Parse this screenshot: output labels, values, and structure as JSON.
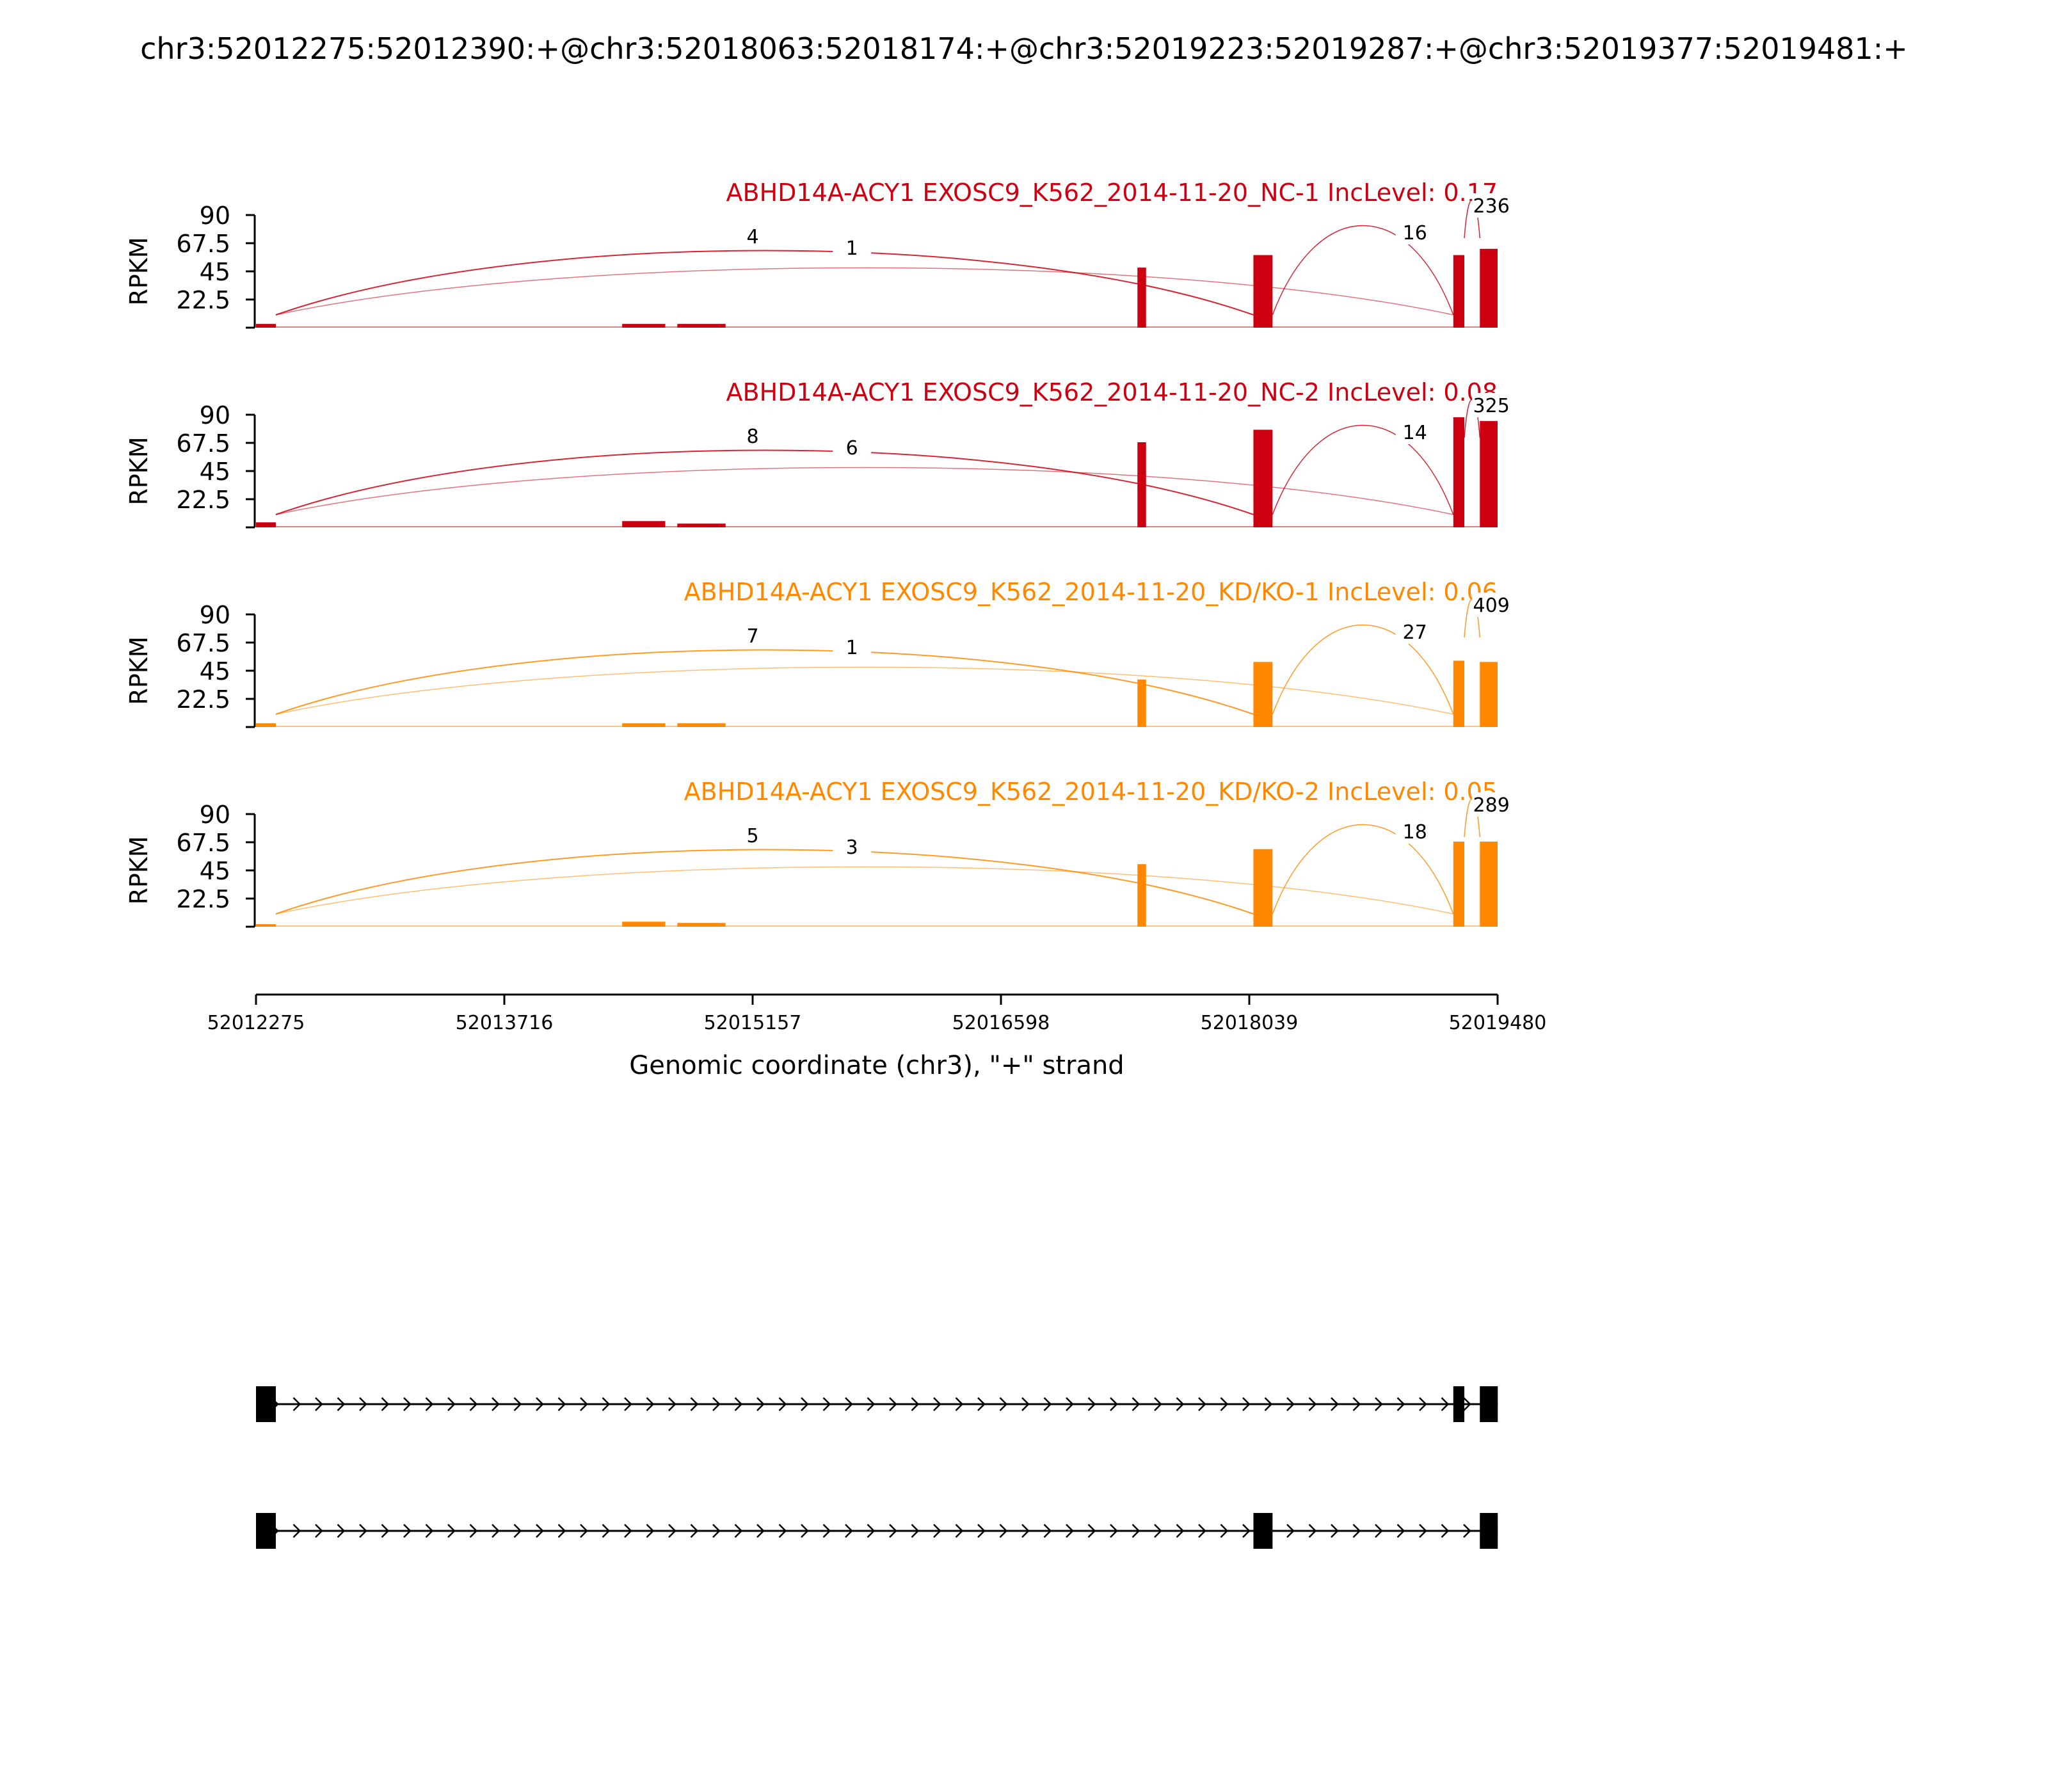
{
  "figure_title": "chr3:52012275:52012390:+@chr3:52018063:52018174:+@chr3:52019223:52019287:+@chr3:52019377:52019481:+",
  "colors": {
    "control": "#cc0011",
    "knockdown": "#ff8800",
    "structure": "#000000"
  },
  "chart_data": {
    "type": "area",
    "xlim": [
      52012275,
      52019480
    ],
    "xticks": [
      "52012275",
      "52013716",
      "52015157",
      "52016598",
      "52018039",
      "52019480"
    ],
    "xlabel": "Genomic coordinate (chr3), \"+\" strand",
    "tracks": [
      {
        "title": "ABHD14A-ACY1 EXOSC9_K562_2014-11-20_NC-1 IncLevel: 0.17",
        "group": "control",
        "ylabel": "RPKM",
        "ylim": [
          0,
          90
        ],
        "yticks": [
          "90",
          "67.5",
          "45",
          "22.5"
        ],
        "coverage": [
          {
            "x": [
              52012275,
              52012390
            ],
            "y": 3
          },
          {
            "x": [
              52014400,
              52014650
            ],
            "y": 3
          },
          {
            "x": [
              52014720,
              52015000
            ],
            "y": 3
          },
          {
            "x": [
              52017390,
              52017440
            ],
            "y": 48
          },
          {
            "x": [
              52018063,
              52018174
            ],
            "y": 58
          },
          {
            "x": [
              52019223,
              52019287
            ],
            "y": 58
          },
          {
            "x": [
              52019377,
              52019480
            ],
            "y": 63
          }
        ],
        "junctions": [
          {
            "from": 52012390,
            "to": 52018063,
            "count": "4"
          },
          {
            "from": 52012390,
            "to": 52019223,
            "count": "1"
          },
          {
            "from": 52018174,
            "to": 52019223,
            "count": "16"
          },
          {
            "from": 52019287,
            "to": 52019377,
            "count": "236"
          }
        ]
      },
      {
        "title": "ABHD14A-ACY1 EXOSC9_K562_2014-11-20_NC-2 IncLevel: 0.08",
        "group": "control",
        "ylabel": "RPKM",
        "ylim": [
          0,
          90
        ],
        "yticks": [
          "90",
          "67.5",
          "45",
          "22.5"
        ],
        "coverage": [
          {
            "x": [
              52012275,
              52012390
            ],
            "y": 4
          },
          {
            "x": [
              52014400,
              52014650
            ],
            "y": 5
          },
          {
            "x": [
              52014720,
              52015000
            ],
            "y": 3
          },
          {
            "x": [
              52017390,
              52017440
            ],
            "y": 68
          },
          {
            "x": [
              52018063,
              52018174
            ],
            "y": 78
          },
          {
            "x": [
              52019223,
              52019287
            ],
            "y": 88
          },
          {
            "x": [
              52019377,
              52019480
            ],
            "y": 85
          }
        ],
        "junctions": [
          {
            "from": 52012390,
            "to": 52018063,
            "count": "8"
          },
          {
            "from": 52012390,
            "to": 52019223,
            "count": "6"
          },
          {
            "from": 52018174,
            "to": 52019223,
            "count": "14"
          },
          {
            "from": 52019287,
            "to": 52019377,
            "count": "325"
          }
        ]
      },
      {
        "title": "ABHD14A-ACY1 EXOSC9_K562_2014-11-20_KD/KO-1 IncLevel: 0.06",
        "group": "knockdown",
        "ylabel": "RPKM",
        "ylim": [
          0,
          90
        ],
        "yticks": [
          "90",
          "67.5",
          "45",
          "22.5"
        ],
        "coverage": [
          {
            "x": [
              52012275,
              52012390
            ],
            "y": 3
          },
          {
            "x": [
              52014400,
              52014650
            ],
            "y": 3
          },
          {
            "x": [
              52014720,
              52015000
            ],
            "y": 3
          },
          {
            "x": [
              52017390,
              52017440
            ],
            "y": 38
          },
          {
            "x": [
              52018063,
              52018174
            ],
            "y": 52
          },
          {
            "x": [
              52019223,
              52019287
            ],
            "y": 53
          },
          {
            "x": [
              52019377,
              52019480
            ],
            "y": 52
          }
        ],
        "junctions": [
          {
            "from": 52012390,
            "to": 52018063,
            "count": "7"
          },
          {
            "from": 52012390,
            "to": 52019223,
            "count": "1"
          },
          {
            "from": 52018174,
            "to": 52019223,
            "count": "27"
          },
          {
            "from": 52019287,
            "to": 52019377,
            "count": "409"
          }
        ]
      },
      {
        "title": "ABHD14A-ACY1 EXOSC9_K562_2014-11-20_KD/KO-2 IncLevel: 0.05",
        "group": "knockdown",
        "ylabel": "RPKM",
        "ylim": [
          0,
          90
        ],
        "yticks": [
          "90",
          "67.5",
          "45",
          "22.5"
        ],
        "coverage": [
          {
            "x": [
              52012275,
              52012390
            ],
            "y": 2
          },
          {
            "x": [
              52014400,
              52014650
            ],
            "y": 4
          },
          {
            "x": [
              52014720,
              52015000
            ],
            "y": 3
          },
          {
            "x": [
              52017390,
              52017440
            ],
            "y": 50
          },
          {
            "x": [
              52018063,
              52018174
            ],
            "y": 62
          },
          {
            "x": [
              52019223,
              52019287
            ],
            "y": 68
          },
          {
            "x": [
              52019377,
              52019480
            ],
            "y": 68
          }
        ],
        "junctions": [
          {
            "from": 52012390,
            "to": 52018063,
            "count": "5"
          },
          {
            "from": 52012390,
            "to": 52019223,
            "count": "3"
          },
          {
            "from": 52018174,
            "to": 52019223,
            "count": "18"
          },
          {
            "from": 52019287,
            "to": 52019377,
            "count": "289"
          }
        ]
      }
    ],
    "isoforms": [
      {
        "exons": [
          [
            52012275,
            52012390
          ],
          [
            52019223,
            52019287
          ],
          [
            52019377,
            52019481
          ]
        ]
      },
      {
        "exons": [
          [
            52012275,
            52012390
          ],
          [
            52018063,
            52018174
          ],
          [
            52019377,
            52019481
          ]
        ]
      }
    ]
  }
}
